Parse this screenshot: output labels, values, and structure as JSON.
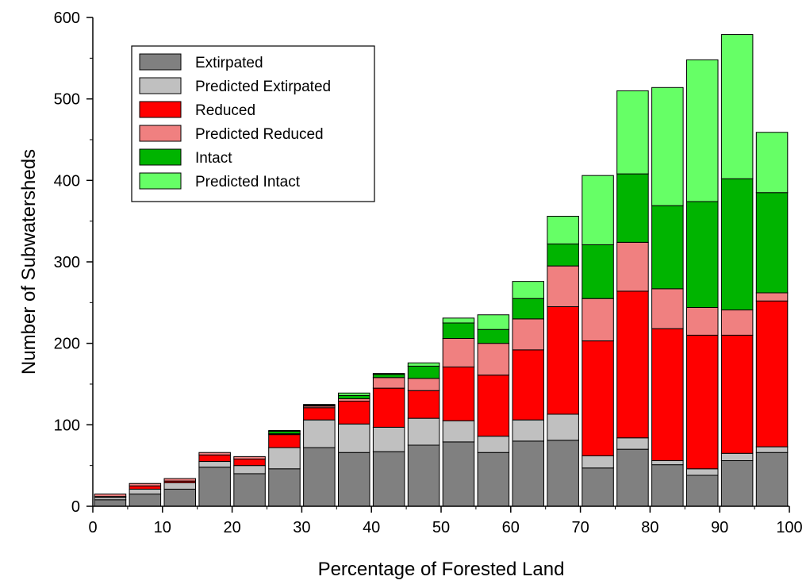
{
  "chart_data": {
    "type": "bar",
    "stacked": true,
    "xlabel": "Percentage of Forested Land",
    "ylabel": "Number of Subwatersheds",
    "xlim": [
      0,
      100
    ],
    "ylim": [
      0,
      600
    ],
    "x_ticks": [
      "0",
      "10",
      "20",
      "30",
      "40",
      "50",
      "60",
      "70",
      "80",
      "90",
      "100"
    ],
    "y_ticks": [
      "0",
      "100",
      "200",
      "300",
      "400",
      "500",
      "600"
    ],
    "grid": false,
    "legend_position": "top-left",
    "bin_width": 5,
    "x": [
      2.5,
      7.5,
      12.5,
      17.5,
      22.5,
      27.5,
      32.5,
      37.5,
      42.5,
      47.5,
      52.5,
      57.5,
      62.5,
      67.5,
      72.5,
      77.5,
      82.5,
      87.5,
      92.5,
      97.5
    ],
    "series": [
      {
        "name": "Extirpated",
        "color": "#808080",
        "values": [
          8,
          15,
          21,
          48,
          40,
          46,
          72,
          66,
          67,
          75,
          79,
          66,
          80,
          81,
          47,
          70,
          51,
          38,
          56,
          66
        ]
      },
      {
        "name": "Predicted Extirpated",
        "color": "#c0c0c0",
        "values": [
          3,
          6,
          8,
          7,
          10,
          26,
          34,
          35,
          30,
          33,
          26,
          20,
          26,
          32,
          15,
          14,
          5,
          8,
          9,
          7
        ]
      },
      {
        "name": "Reduced",
        "color": "#ff0000",
        "values": [
          1,
          4,
          2,
          8,
          8,
          16,
          15,
          28,
          48,
          34,
          66,
          75,
          86,
          132,
          141,
          180,
          162,
          164,
          145,
          179
        ]
      },
      {
        "name": "Predicted Reduced",
        "color": "#f08080",
        "values": [
          3,
          3,
          3,
          3,
          3,
          1,
          2,
          3,
          13,
          15,
          35,
          39,
          38,
          50,
          52,
          60,
          49,
          34,
          31,
          10
        ]
      },
      {
        "name": "Intact",
        "color": "#00b400",
        "values": [
          0,
          0,
          0,
          0,
          0,
          3,
          1,
          4,
          4,
          15,
          19,
          17,
          25,
          27,
          66,
          84,
          102,
          130,
          161,
          123
        ]
      },
      {
        "name": "Predicted Intact",
        "color": "#66ff66",
        "values": [
          0,
          0,
          0,
          0,
          0,
          1,
          1,
          3,
          1,
          4,
          6,
          18,
          21,
          34,
          85,
          102,
          145,
          174,
          177,
          74
        ]
      }
    ]
  }
}
